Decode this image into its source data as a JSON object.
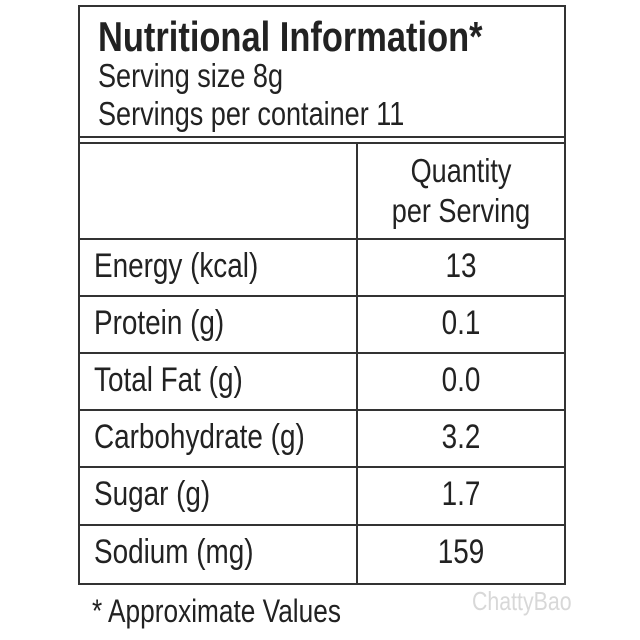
{
  "header": {
    "title": "Nutritional Information*",
    "serving_size": "Serving size 8g",
    "servings_per_container": "Servings per container 11"
  },
  "table": {
    "column_header": [
      "Quantity",
      "per Serving"
    ],
    "rows": [
      [
        "Energy (kcal)",
        "13"
      ],
      [
        "Protein (g)",
        "0.1"
      ],
      [
        "Total Fat (g)",
        "0.0"
      ],
      [
        "Carbohydrate (g)",
        "3.2"
      ],
      [
        "Sugar (g)",
        "1.7"
      ],
      [
        "Sodium (mg)",
        "159"
      ]
    ]
  },
  "footnote": "* Approximate Values",
  "watermark": "ChattyBao"
}
